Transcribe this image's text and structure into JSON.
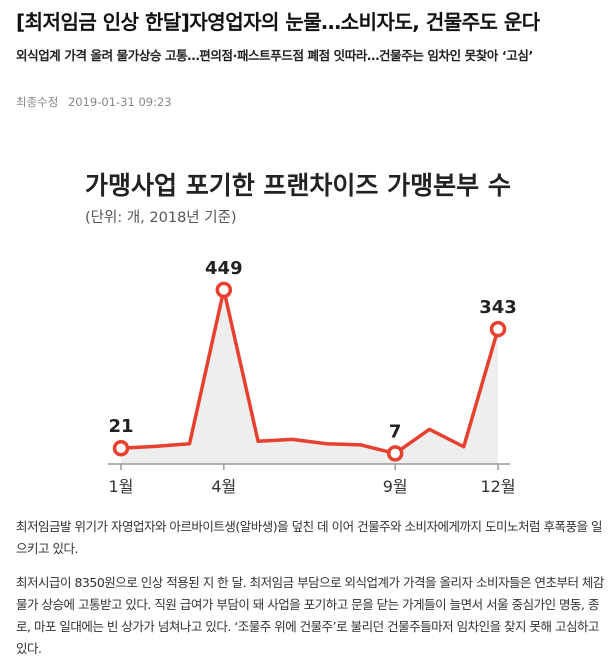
{
  "article": {
    "headline": "[최저임금 인상 한달]자영업자의 눈물…소비자도, 건물주도 운다",
    "subheadline": "외식업계 가격 올려 물가상승 고통…편의점·패스트푸드점 폐점 잇따라…건물주는 임차인 못찾아 ‘고심’",
    "updated_label": "최종수정",
    "updated_at": "2019-01-31 09:23",
    "paragraphs": [
      "최저임금발 위기가 자영업자와 아르바이트생(알바생)을 덮친 데 이어 건물주와 소비자에게까지 도미노처럼 후폭풍을 일으키고 있다.",
      "최저시급이 8350원으로 인상 적용된 지 한 달. 최저임금 부담으로 외식업계가 가격을 올리자 소비자들은 연초부터 체감물가 상승에 고통받고 있다. 직원 급여가 부담이 돼 사업을 포기하고 문을 닫는 가게들이 늘면서 서울 중심가인 명동, 종로, 마포 일대에는 빈 상가가 넘쳐나고 있다. ‘조물주 위에 건물주’로 불리던 건물주들마저 임차인을 찾지 못해 고심하고 있다."
    ]
  },
  "chart_data": {
    "type": "line",
    "title": "가맹사업 포기한 프랜차이즈 가맹본부 수",
    "subtitle": "(단위: 개, 2018년 기준)",
    "x": [
      1,
      2,
      3,
      4,
      5,
      6,
      7,
      8,
      9,
      10,
      11,
      12
    ],
    "values": [
      21,
      26,
      33,
      449,
      40,
      45,
      33,
      30,
      7,
      72,
      25,
      343
    ],
    "tick_labels": [
      {
        "x": 1,
        "label": "1월"
      },
      {
        "x": 4,
        "label": "4월"
      },
      {
        "x": 9,
        "label": "9월"
      },
      {
        "x": 12,
        "label": "12월"
      }
    ],
    "data_labels": [
      {
        "x": 1,
        "label": "21"
      },
      {
        "x": 4,
        "label": "449"
      },
      {
        "x": 9,
        "label": "7"
      },
      {
        "x": 12,
        "label": "343"
      }
    ],
    "ylim": [
      0,
      500
    ],
    "line_color": "#e8402f",
    "area_color": "#eeeeee",
    "grid": false,
    "legend": "none"
  }
}
